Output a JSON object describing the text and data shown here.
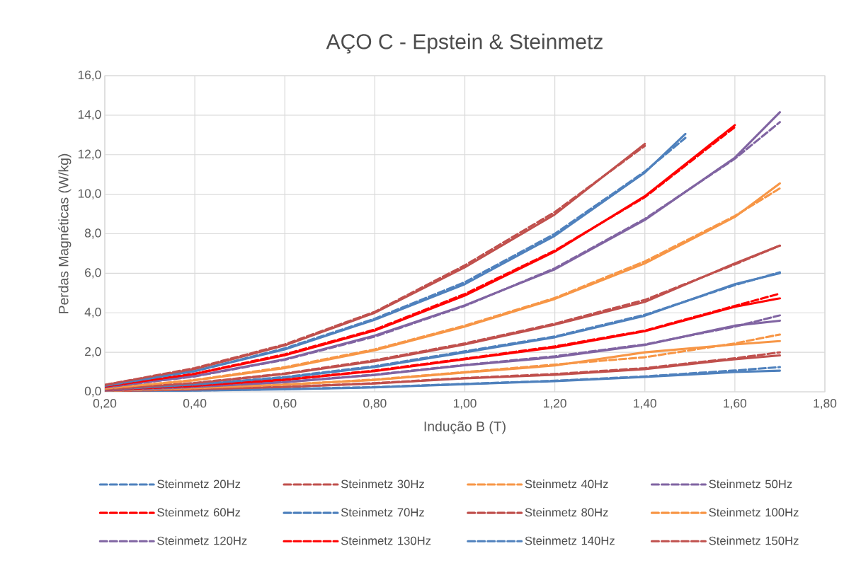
{
  "chart_data": {
    "type": "line",
    "title": "AÇO C - Epstein & Steinmetz",
    "xlabel": "Indução B (T)",
    "ylabel": "Perdas Magnéticas (W/kg)",
    "xlim": [
      0.2,
      1.8
    ],
    "ylim": [
      0,
      16
    ],
    "xticks": [
      {
        "value": 0.2,
        "label": "0,20"
      },
      {
        "value": 0.4,
        "label": "0,40"
      },
      {
        "value": 0.6,
        "label": "0,60"
      },
      {
        "value": 0.8,
        "label": "0,80"
      },
      {
        "value": 1.0,
        "label": "1,00"
      },
      {
        "value": 1.2,
        "label": "1,20"
      },
      {
        "value": 1.4,
        "label": "1,40"
      },
      {
        "value": 1.6,
        "label": "1,60"
      },
      {
        "value": 1.8,
        "label": "1,80"
      }
    ],
    "yticks": [
      {
        "value": 0,
        "label": "0,0"
      },
      {
        "value": 2,
        "label": "2,0"
      },
      {
        "value": 4,
        "label": "4,0"
      },
      {
        "value": 6,
        "label": "6,0"
      },
      {
        "value": 8,
        "label": "8,0"
      },
      {
        "value": 10,
        "label": "10,0"
      },
      {
        "value": 12,
        "label": "12,0"
      },
      {
        "value": 14,
        "label": "14,0"
      },
      {
        "value": 16,
        "label": "16,0"
      }
    ],
    "grid": true,
    "legend": "bottom",
    "x": [
      0.2,
      0.4,
      0.6,
      0.8,
      1.0,
      1.2,
      1.4,
      1.6,
      1.7
    ],
    "series": [
      {
        "color": "#4f81bd",
        "line_style": "solid",
        "values": [
          0.02,
          0.06,
          0.13,
          0.22,
          0.39,
          0.54,
          0.75,
          1.0,
          1.07
        ]
      },
      {
        "color": "#c0504d",
        "line_style": "solid",
        "values": [
          0.03,
          0.11,
          0.24,
          0.42,
          0.68,
          0.86,
          1.15,
          1.65,
          1.84
        ]
      },
      {
        "color": "#f79646",
        "line_style": "solid",
        "values": [
          0.05,
          0.17,
          0.36,
          0.6,
          0.98,
          1.33,
          2.0,
          2.4,
          2.57
        ]
      },
      {
        "color": "#8064a2",
        "line_style": "solid",
        "values": [
          0.06,
          0.23,
          0.48,
          0.85,
          1.34,
          1.75,
          2.37,
          3.35,
          3.6
        ]
      },
      {
        "color": "#ff0000",
        "line_style": "solid",
        "values": [
          0.08,
          0.29,
          0.6,
          1.05,
          1.65,
          2.25,
          3.07,
          4.3,
          4.73
        ]
      },
      {
        "color": "#4f81bd",
        "line_style": "solid",
        "values": [
          0.1,
          0.35,
          0.72,
          1.25,
          2.0,
          2.76,
          3.85,
          5.45,
          6.0
        ]
      },
      {
        "color": "#c0504d",
        "line_style": "solid",
        "values": [
          0.12,
          0.43,
          0.9,
          1.55,
          2.4,
          3.4,
          4.55,
          6.5,
          7.4
        ]
      },
      {
        "color": "#f79646",
        "line_style": "solid",
        "values": [
          0.16,
          0.58,
          1.2,
          2.1,
          3.3,
          4.7,
          6.5,
          8.85,
          10.55
        ]
      },
      {
        "color": "#8064a2",
        "line_style": "solid",
        "values": [
          0.22,
          0.8,
          1.65,
          2.85,
          4.38,
          6.2,
          8.7,
          11.85,
          14.15
        ]
      },
      {
        "color": "#ff0000",
        "line_style": "solid",
        "x": [
          0.2,
          0.4,
          0.6,
          0.8,
          1.0,
          1.2,
          1.4,
          1.6
        ],
        "values": [
          0.26,
          0.9,
          1.85,
          3.1,
          4.87,
          7.1,
          9.9,
          13.5
        ]
      },
      {
        "color": "#4f81bd",
        "line_style": "solid",
        "x": [
          0.2,
          0.4,
          0.6,
          0.8,
          1.0,
          1.2,
          1.4,
          1.49
        ],
        "values": [
          0.3,
          1.05,
          2.15,
          3.65,
          5.45,
          7.9,
          11.1,
          13.05
        ]
      },
      {
        "color": "#c0504d",
        "line_style": "solid",
        "x": [
          0.2,
          0.4,
          0.6,
          0.8,
          1.0,
          1.2,
          1.4
        ],
        "values": [
          0.35,
          1.15,
          2.35,
          4.0,
          6.3,
          8.98,
          12.55
        ]
      },
      {
        "name": "Steinmetz 20Hz",
        "color": "#4f81bd",
        "line_style": "dashed",
        "values": [
          0.02,
          0.07,
          0.14,
          0.24,
          0.4,
          0.56,
          0.78,
          1.08,
          1.25
        ]
      },
      {
        "name": "Steinmetz 30Hz",
        "color": "#c0504d",
        "line_style": "dashed",
        "values": [
          0.03,
          0.12,
          0.25,
          0.44,
          0.7,
          0.9,
          1.2,
          1.7,
          2.0
        ]
      },
      {
        "name": "Steinmetz 40Hz",
        "color": "#f79646",
        "line_style": "dashed",
        "values": [
          0.05,
          0.18,
          0.37,
          0.62,
          1.0,
          1.38,
          1.75,
          2.45,
          2.9
        ]
      },
      {
        "name": "Steinmetz 50Hz",
        "color": "#8064a2",
        "line_style": "dashed",
        "values": [
          0.06,
          0.24,
          0.5,
          0.87,
          1.36,
          1.8,
          2.4,
          3.3,
          3.87
        ]
      },
      {
        "name": "Steinmetz 60Hz",
        "color": "#ff0000",
        "line_style": "dashed",
        "values": [
          0.08,
          0.3,
          0.62,
          1.08,
          1.68,
          2.3,
          3.1,
          4.35,
          4.97
        ]
      },
      {
        "name": "Steinmetz 70Hz",
        "color": "#4f81bd",
        "line_style": "dashed",
        "values": [
          0.1,
          0.37,
          0.75,
          1.3,
          2.05,
          2.8,
          3.9,
          5.4,
          6.05
        ]
      },
      {
        "name": "Steinmetz 80Hz",
        "color": "#c0504d",
        "line_style": "dashed",
        "values": [
          0.12,
          0.45,
          0.93,
          1.6,
          2.45,
          3.45,
          4.65,
          6.45,
          7.4
        ]
      },
      {
        "name": "Steinmetz 100Hz",
        "color": "#f79646",
        "line_style": "dashed",
        "values": [
          0.16,
          0.6,
          1.25,
          2.15,
          3.35,
          4.75,
          6.6,
          8.9,
          10.3
        ]
      },
      {
        "name": "Steinmetz 120Hz",
        "color": "#8064a2",
        "line_style": "dashed",
        "values": [
          0.22,
          0.78,
          1.62,
          2.8,
          4.35,
          6.25,
          8.75,
          11.8,
          13.65
        ]
      },
      {
        "name": "Steinmetz 130Hz",
        "color": "#ff0000",
        "line_style": "dashed",
        "x": [
          0.2,
          0.4,
          0.6,
          0.8,
          1.0,
          1.2,
          1.4,
          1.6
        ],
        "values": [
          0.26,
          0.92,
          1.9,
          3.15,
          4.95,
          7.15,
          9.85,
          13.4
        ]
      },
      {
        "name": "Steinmetz 140Hz",
        "color": "#4f81bd",
        "line_style": "dashed",
        "x": [
          0.2,
          0.4,
          0.6,
          0.8,
          1.0,
          1.2,
          1.4,
          1.49
        ],
        "values": [
          0.3,
          1.05,
          2.2,
          3.7,
          5.55,
          8.0,
          11.15,
          12.85
        ]
      },
      {
        "name": "Steinmetz 150Hz",
        "color": "#c0504d",
        "line_style": "dashed",
        "x": [
          0.2,
          0.4,
          0.6,
          0.8,
          1.0,
          1.2,
          1.4
        ],
        "values": [
          0.35,
          1.2,
          2.4,
          4.05,
          6.4,
          9.1,
          12.45
        ]
      }
    ]
  }
}
